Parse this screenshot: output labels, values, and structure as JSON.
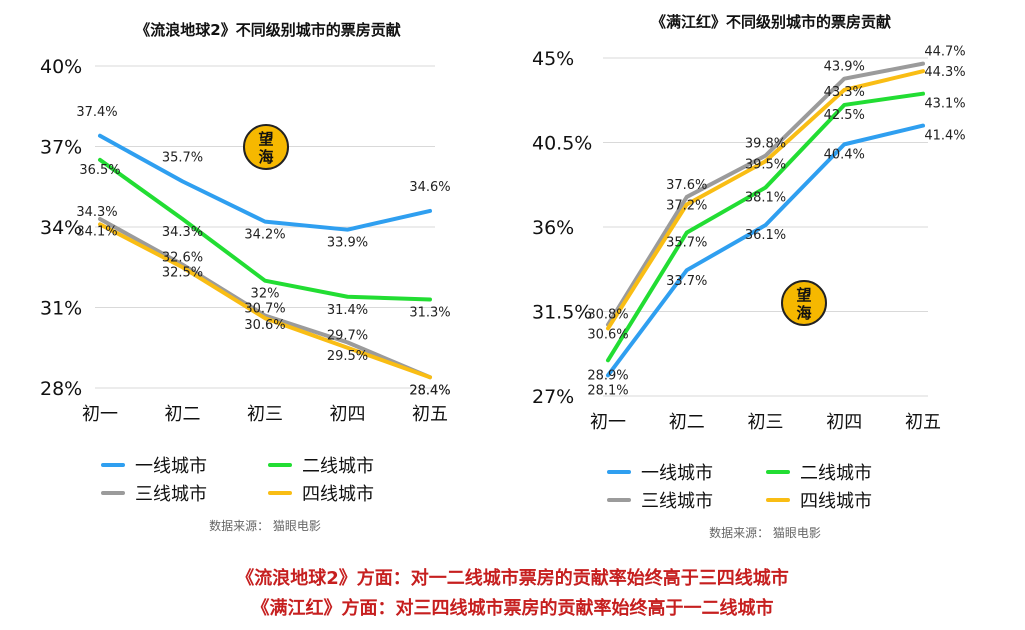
{
  "colors": {
    "tier1": "#2f9ff0",
    "tier2": "#22dd33",
    "tier3": "#9b9b9b",
    "tier4": "#f9bd14",
    "caption": "#c61f1f",
    "logo": "#f6b800"
  },
  "logo_text": "望海",
  "chart_data": [
    {
      "type": "line",
      "title": "《流浪地球2》不同级别城市的票房贡献",
      "categories": [
        "初一",
        "初二",
        "初三",
        "初四",
        "初五"
      ],
      "ylim": [
        28,
        40
      ],
      "yticks": [
        "40%",
        "37%",
        "34%",
        "31%",
        "28%"
      ],
      "ytick_values": [
        40,
        37,
        34,
        31,
        28
      ],
      "grid": true,
      "legend_position": "bottom",
      "series": [
        {
          "name": "一线城市",
          "color_key": "tier1",
          "values": [
            37.4,
            35.7,
            34.2,
            33.9,
            34.6
          ],
          "labels": [
            "37.4%",
            "35.7%",
            "34.2%",
            "33.9%",
            "34.6%"
          ]
        },
        {
          "name": "二线城市",
          "color_key": "tier2",
          "values": [
            36.5,
            34.3,
            32,
            31.4,
            31.3
          ],
          "labels": [
            "36.5%",
            "34.3%",
            "32%",
            "31.4%",
            "31.3%"
          ]
        },
        {
          "name": "三线城市",
          "color_key": "tier3",
          "values": [
            34.3,
            32.6,
            30.7,
            29.7,
            28.4
          ],
          "labels": [
            "34.3%",
            "32.6%",
            "30.7%",
            "29.7%",
            "28.4%"
          ]
        },
        {
          "name": "四线城市",
          "color_key": "tier4",
          "values": [
            34.1,
            32.5,
            30.6,
            29.5,
            28.4
          ],
          "labels": [
            "34.1%",
            "32.5%",
            "30.6%",
            "29.5%",
            "28.4%"
          ]
        }
      ],
      "source": "数据来源： 猫眼电影"
    },
    {
      "type": "line",
      "title": "《满江红》不同级别城市的票房贡献",
      "categories": [
        "初一",
        "初二",
        "初三",
        "初四",
        "初五"
      ],
      "ylim": [
        27,
        45
      ],
      "yticks": [
        "45%",
        "40.5%",
        "36%",
        "31.5%",
        "27%"
      ],
      "ytick_values": [
        45,
        40.5,
        36,
        31.5,
        27
      ],
      "grid": true,
      "legend_position": "bottom",
      "series": [
        {
          "name": "一线城市",
          "color_key": "tier1",
          "values": [
            28.1,
            33.7,
            36.1,
            40.4,
            41.4
          ],
          "labels": [
            "28.1%",
            "33.7%",
            "36.1%",
            "40.4%",
            "41.4%"
          ]
        },
        {
          "name": "二线城市",
          "color_key": "tier2",
          "values": [
            28.9,
            35.7,
            38.1,
            42.5,
            43.1
          ],
          "labels": [
            "28.9%",
            "35.7%",
            "38.1%",
            "42.5%",
            "43.1%"
          ]
        },
        {
          "name": "三线城市",
          "color_key": "tier3",
          "values": [
            30.8,
            37.6,
            39.8,
            43.9,
            44.7
          ],
          "labels": [
            "30.8%",
            "37.6%",
            "39.8%",
            "43.9%",
            "44.7%"
          ]
        },
        {
          "name": "四线城市",
          "color_key": "tier4",
          "values": [
            30.6,
            37.2,
            39.5,
            43.3,
            44.3
          ],
          "labels": [
            "30.6%",
            "37.2%",
            "39.5%",
            "43.3%",
            "44.3%"
          ]
        }
      ],
      "source": "数据来源： 猫眼电影"
    }
  ],
  "captions": [
    "《流浪地球2》方面：对一二线城市票房的贡献率始终高于三四线城市",
    "《满江红》方面：对三四线城市票房的贡献率始终高于一二线城市"
  ]
}
